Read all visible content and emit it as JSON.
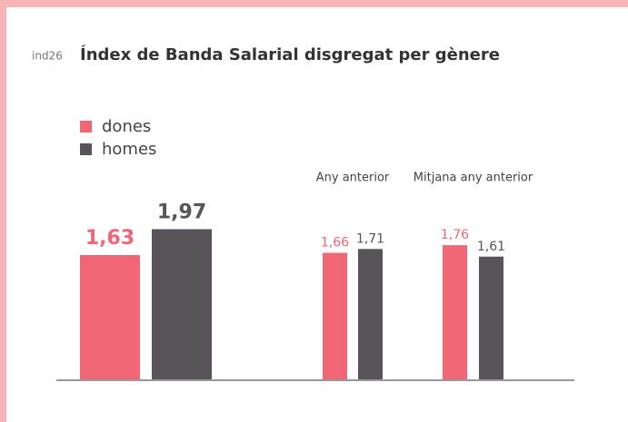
{
  "chart_data": {
    "type": "bar",
    "code": "ind26",
    "title": "Índex de Banda Salarial disgregat per gènere",
    "categories": [
      null,
      "Any anterior",
      "Mitjana any anterior"
    ],
    "series": [
      {
        "name": "dones",
        "color": "#f06674",
        "values": [
          1.63,
          1.66,
          1.76
        ],
        "value_labels": [
          "1,63",
          "1,66",
          "1,76"
        ]
      },
      {
        "name": "homes",
        "color": "#58545a",
        "values": [
          1.97,
          1.71,
          1.61
        ],
        "value_labels": [
          "1,97",
          "1,71",
          "1,61"
        ]
      }
    ]
  }
}
